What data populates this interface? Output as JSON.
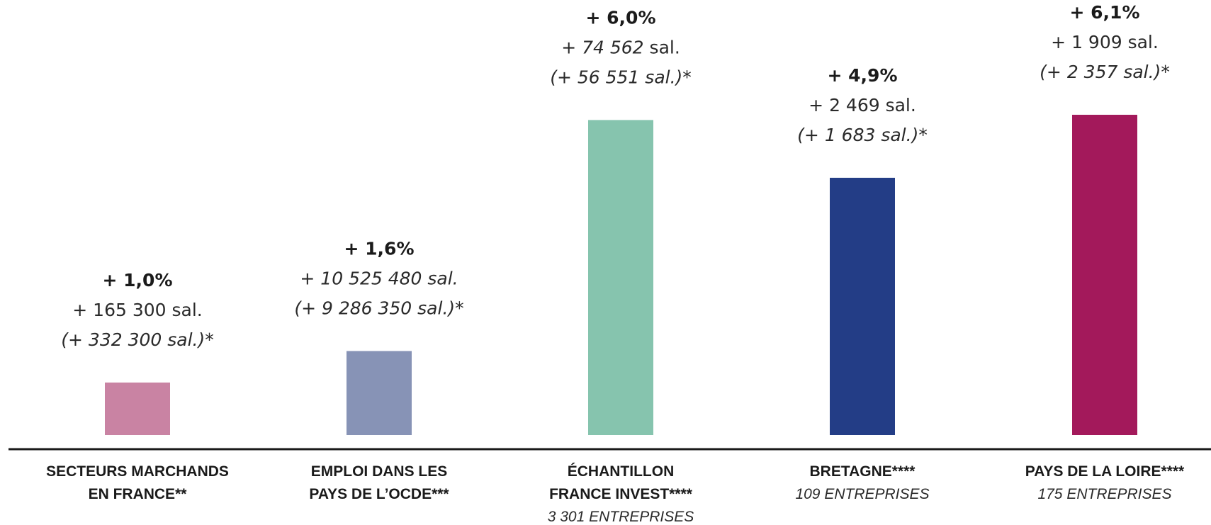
{
  "chart_data": {
    "type": "bar",
    "title": "",
    "xlabel": "",
    "ylabel": "",
    "ylim": [
      0,
      7
    ],
    "grid": false,
    "categories": [
      [
        "SECTEURS MARCHANDS",
        "EN FRANCE**"
      ],
      [
        "EMPLOI DANS LES",
        "PAYS DE L’OCDE***"
      ],
      [
        "ÉCHANTILLON",
        "FRANCE INVEST****"
      ],
      [
        "BRETAGNE****"
      ],
      [
        "PAYS DE LA LOIRE****"
      ]
    ],
    "subtitles": [
      "",
      "",
      "3 301 ENTREPRISES",
      "109 ENTREPRISES",
      "175 ENTREPRISES"
    ],
    "values": [
      1.0,
      1.6,
      6.0,
      4.9,
      6.1
    ],
    "colors": [
      "#c983a3",
      "#8793b6",
      "#86c4ae",
      "#233d86",
      "#a3195b"
    ],
    "labels": [
      {
        "pct": "+ 1,0%",
        "sal": {
          "num": "+ 165 300 sal.",
          "unit": "",
          "italic": false
        },
        "prev": "(+ 332 300 sal.)*"
      },
      {
        "pct": "+ 1,6%",
        "sal": {
          "num": "+ 10 525 480 sal.",
          "unit": "",
          "italic": true
        },
        "prev": "(+ 9 286 350 sal.)*"
      },
      {
        "pct": "+ 6,0%",
        "sal": {
          "num": "+ 74 562",
          "unit": " sal.",
          "italic": true
        },
        "prev": "(+ 56 551 sal.)*"
      },
      {
        "pct": "+ 4,9%",
        "sal": {
          "num": "+ 2 469 sal.",
          "unit": "",
          "italic": false
        },
        "prev": "(+ 1 683 sal.)*"
      },
      {
        "pct": "+ 6,1%",
        "sal": {
          "num": "+ 1 909 sal.",
          "unit": "",
          "italic": false
        },
        "prev": "(+ 2 357 sal.)*"
      }
    ]
  }
}
